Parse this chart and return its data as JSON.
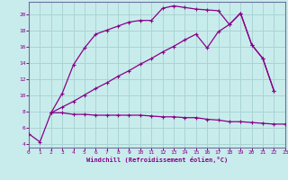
{
  "xlabel": "Windchill (Refroidissement éolien,°C)",
  "bg_color": "#c8ecec",
  "grid_color": "#aad4d4",
  "line_color": "#880088",
  "border_color": "#7070a0",
  "x_ticks": [
    0,
    1,
    2,
    3,
    4,
    5,
    6,
    7,
    8,
    9,
    10,
    11,
    12,
    13,
    14,
    15,
    16,
    17,
    18,
    19,
    20,
    21,
    22,
    23
  ],
  "y_ticks": [
    4,
    6,
    8,
    10,
    12,
    14,
    16,
    18,
    20
  ],
  "xlim": [
    0,
    23
  ],
  "ylim": [
    3.5,
    21.5
  ],
  "series1_x": [
    0,
    1,
    2,
    3,
    4,
    5,
    6,
    7,
    8,
    9,
    10,
    11,
    12,
    13,
    14,
    15,
    16,
    17,
    18,
    19,
    20,
    21,
    22
  ],
  "series1_y": [
    5.2,
    4.2,
    7.8,
    10.2,
    13.7,
    15.8,
    17.5,
    18.0,
    18.5,
    19.0,
    19.2,
    19.2,
    20.7,
    21.0,
    20.8,
    20.6,
    20.5,
    20.4,
    18.7,
    20.1,
    16.2,
    14.5,
    10.5
  ],
  "series2_x": [
    2,
    3,
    4,
    5,
    6,
    7,
    8,
    9,
    10,
    11,
    12,
    13,
    14,
    15,
    16,
    17,
    18,
    19,
    20,
    21,
    22,
    23
  ],
  "series2_y": [
    7.8,
    7.8,
    7.6,
    7.6,
    7.5,
    7.5,
    7.5,
    7.5,
    7.5,
    7.4,
    7.3,
    7.3,
    7.2,
    7.2,
    7.0,
    6.9,
    6.7,
    6.7,
    6.6,
    6.5,
    6.4,
    6.4
  ],
  "series3_x": [
    2,
    3,
    4,
    5,
    6,
    7,
    8,
    9,
    10,
    11,
    12,
    13,
    14,
    15,
    16,
    17,
    18,
    19,
    20,
    21,
    22
  ],
  "series3_y": [
    7.8,
    8.5,
    9.2,
    10.0,
    10.8,
    11.5,
    12.3,
    13.0,
    13.8,
    14.5,
    15.3,
    16.0,
    16.8,
    17.5,
    15.8,
    17.8,
    18.7,
    20.1,
    16.2,
    14.5,
    10.5
  ]
}
